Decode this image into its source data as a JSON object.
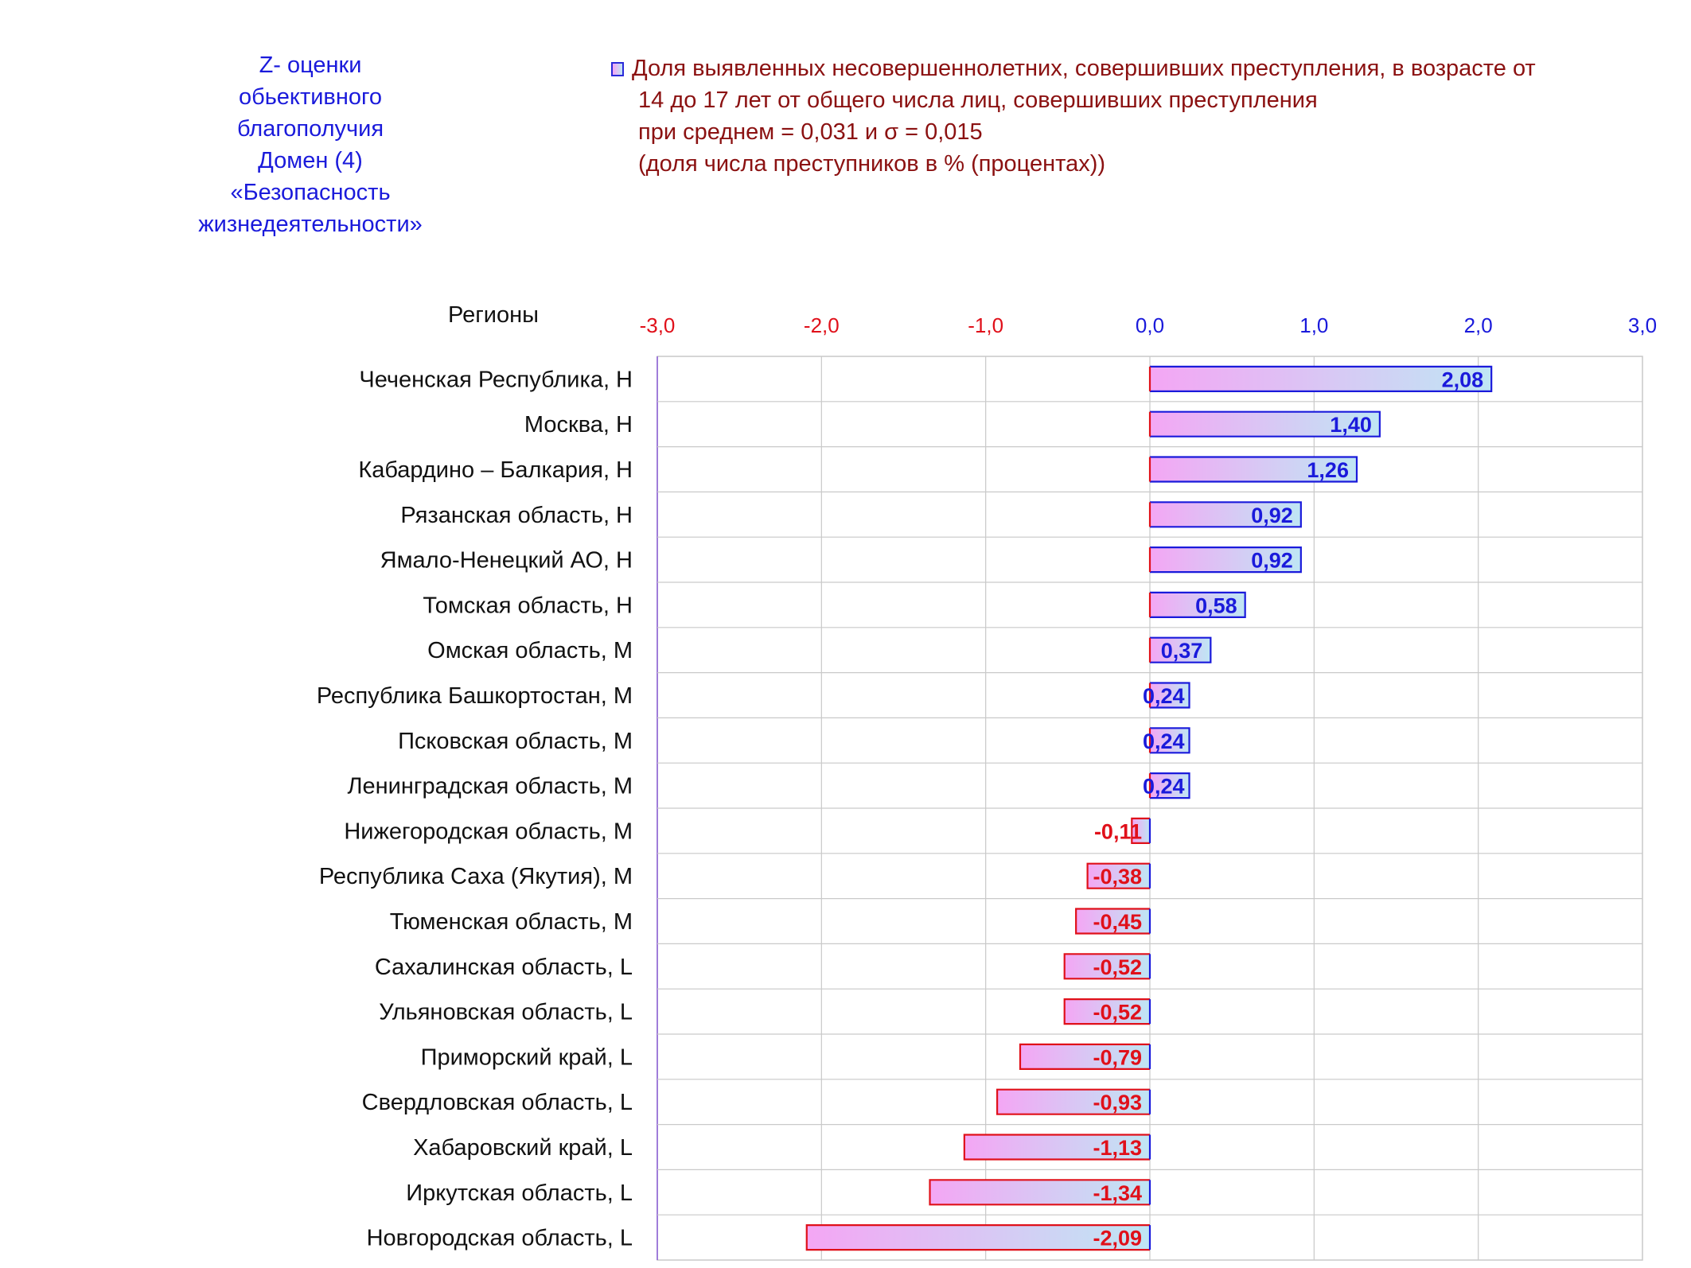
{
  "side_title": [
    "Z- оценки",
    "обьективного",
    "благополучия",
    "Домен (4)",
    "«Безопасность",
    "жизнедеятельности»"
  ],
  "legend_lines": [
    "Доля выявленных несовершеннолетних, совершивших преступления, в возрасте от",
    "14 до 17 лет от общего числа лиц, совершивших преступления",
    "при среднем = 0,031  и σ = 0,015",
    "(доля числа преступников в % (процентах))"
  ],
  "colors": {
    "title": "#1a1adb",
    "legend_text": "#8b1111",
    "positive": "#1a1adb",
    "negative": "#e0101a",
    "grid": "#c9c9c9",
    "bar_left": "#f4a6f4",
    "bar_right": "#bfe6f4"
  },
  "chart_data": {
    "type": "bar",
    "orientation": "horizontal",
    "ylabel": "Регионы",
    "xlim": [
      -3.0,
      3.0
    ],
    "x_ticks": [
      "-3,0",
      "-2,0",
      "-1,0",
      "0,0",
      "1,0",
      "2,0",
      "3,0"
    ],
    "grid": true,
    "categories": [
      "Чеченская Республика,  H",
      "Москва,  H",
      "Кабардино – Балкария,  H",
      "Рязанская область,  H",
      "Ямало-Ненецкий АО,  H",
      "Томская область,  H",
      "Омская область,  M",
      "Республика Башкортостан,  M",
      "Псковская область,  M",
      "Ленинградская область,  M",
      "Нижегородская область,  M",
      "Республика Саха (Якутия),  M",
      "Тюменская область,  M",
      "Сахалинская область,  L",
      "Ульяновская область,  L",
      "Приморский край,  L",
      "Свердловская область,  L",
      "Хабаровский край,  L",
      "Иркутская область,  L",
      "Новгородская область,  L"
    ],
    "values": [
      2.08,
      1.4,
      1.26,
      0.92,
      0.92,
      0.58,
      0.37,
      0.24,
      0.24,
      0.24,
      -0.11,
      -0.38,
      -0.45,
      -0.52,
      -0.52,
      -0.79,
      -0.93,
      -1.13,
      -1.34,
      -2.09
    ],
    "value_labels": [
      "2,08",
      "1,40",
      "1,26",
      "0,92",
      "0,92",
      "0,58",
      "0,37",
      "0,24",
      "0,24",
      "0,24",
      "-0,11",
      "-0,38",
      "-0,45",
      "-0,52",
      "-0,52",
      "-0,79",
      "-0,93",
      "-1,13",
      "-1,34",
      "-2,09"
    ]
  }
}
